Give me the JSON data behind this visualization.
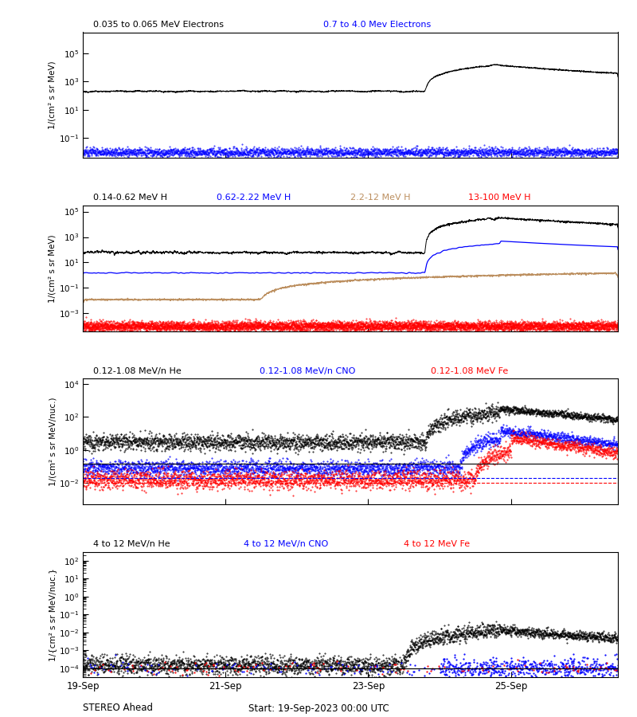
{
  "xtick_labels": [
    "19-Sep",
    "21-Sep",
    "23-Sep",
    "25-Sep"
  ],
  "xtick_positions": [
    0,
    2,
    4,
    6
  ],
  "total_days": 7.5,
  "panel1": {
    "labels": [
      "0.035 to 0.065 MeV Electrons",
      "0.7 to 4.0 Mev Electrons"
    ],
    "colors": [
      "black",
      "blue"
    ],
    "ylabel": "1/(cm² s sr MeV)",
    "ylim": [
      0.004,
      3000000.0
    ],
    "black_base": 200,
    "blue_base": 0.01
  },
  "panel2": {
    "labels": [
      "0.14-0.62 MeV H",
      "0.62-2.22 MeV H",
      "2.2-12 MeV H",
      "13-100 MeV H"
    ],
    "colors": [
      "black",
      "blue",
      "#bc8f5f",
      "red"
    ],
    "ylabel": "1/(cm² s sr MeV)",
    "ylim": [
      4e-05,
      300000.0
    ],
    "black_base": 60,
    "blue_base": 1.5,
    "brown_base": 0.012,
    "red_base": 0.00012
  },
  "panel3": {
    "labels": [
      "0.12-1.08 MeV/n He",
      "0.12-1.08 MeV/n CNO",
      "0.12-1.08 MeV Fe"
    ],
    "colors": [
      "black",
      "blue",
      "red"
    ],
    "ylabel": "1/(cm² s sr MeV/nuc.)",
    "ylim": [
      0.0005,
      20000.0
    ],
    "black_base": 3.0,
    "blue_base": 0.08,
    "red_base": 0.015,
    "floor_black": 0.15,
    "floor_blue": 0.02,
    "floor_red": 0.01
  },
  "panel4": {
    "labels": [
      "4 to 12 MeV/n He",
      "4 to 12 MeV/n CNO",
      "4 to 12 MeV Fe"
    ],
    "colors": [
      "black",
      "blue",
      "red"
    ],
    "ylabel": "1/{cm² s sr MeV/nuc.}",
    "ylim": [
      3e-05,
      300.0
    ],
    "black_base": 0.00015,
    "blue_base": 0.0001,
    "red_base": 0.0001,
    "floor_black": 0.0001
  }
}
